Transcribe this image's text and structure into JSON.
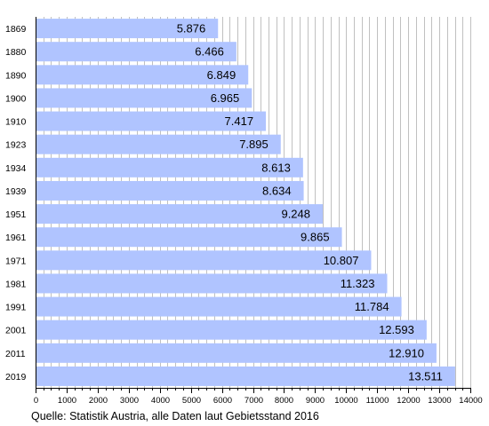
{
  "chart_data": {
    "type": "bar",
    "orientation": "horizontal",
    "categories": [
      "1869",
      "1880",
      "1890",
      "1900",
      "1910",
      "1923",
      "1934",
      "1939",
      "1951",
      "1961",
      "1971",
      "1981",
      "1991",
      "2001",
      "2011",
      "2019"
    ],
    "values": [
      5876,
      6466,
      6849,
      6965,
      7417,
      7895,
      8613,
      8634,
      9248,
      9865,
      10807,
      11323,
      11784,
      12593,
      12910,
      13511
    ],
    "value_labels": [
      "5.876",
      "6.466",
      "6.849",
      "6.965",
      "7.417",
      "7.895",
      "8.613",
      "8.634",
      "9.248",
      "9.865",
      "10.807",
      "11.323",
      "11.784",
      "12.593",
      "12.910",
      "13.511"
    ],
    "title": "",
    "xlabel": "",
    "ylabel": "",
    "xlim": [
      0,
      14000
    ],
    "x_ticks": [
      0,
      1000,
      2000,
      3000,
      4000,
      5000,
      6000,
      7000,
      8000,
      9000,
      10000,
      11000,
      12000,
      13000,
      14000
    ],
    "grid": true,
    "legend": "none",
    "colors": {
      "bar": "#b0c4ff",
      "grid": "#c0c0c0",
      "axis": "#000000",
      "text": "#000000"
    }
  },
  "source_note": "Quelle: Statistik Austria, alle Daten laut Gebietsstand 2016"
}
